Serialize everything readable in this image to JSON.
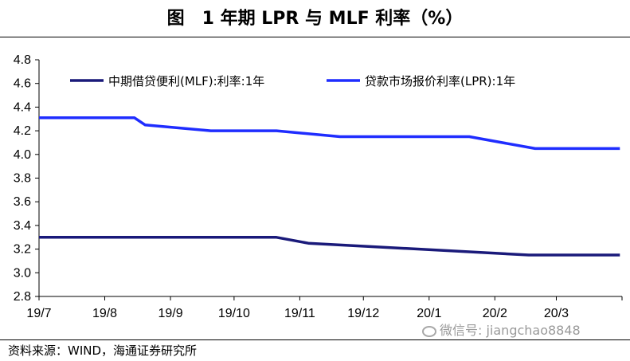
{
  "title": "图　1 年期 LPR 与 MLF 利率（%）",
  "source": "资料来源：WIND，海通证券研究所",
  "watermark": "微信号: jiangchao8848",
  "colors": {
    "mlf": "#1a1a7a",
    "lpr": "#1f2dff",
    "axis": "#000000"
  },
  "chart_data": {
    "type": "line",
    "x": [
      "2019-07-01",
      "2019-08-15",
      "2019-08-20",
      "2019-09-20",
      "2019-10-21",
      "2019-11-05",
      "2019-11-20",
      "2019-12-20",
      "2020-01-20",
      "2020-02-17",
      "2020-02-20",
      "2020-03-20",
      "2020-03-31"
    ],
    "x_tick_labels": [
      "19/7",
      "19/8",
      "19/9",
      "19/10",
      "19/11",
      "19/12",
      "20/1",
      "20/2",
      "20/3"
    ],
    "y_tick_labels": [
      "2.8",
      "3.0",
      "3.2",
      "3.4",
      "3.6",
      "3.8",
      "4.0",
      "4.2",
      "4.4",
      "4.6",
      "4.8"
    ],
    "ylim": [
      2.8,
      4.8
    ],
    "grid": false,
    "legend_position": "top",
    "series": [
      {
        "name": "中期借贷便利(MLF):利率:1年",
        "color": "#1a1a7a",
        "points": [
          [
            "2019-07-01",
            3.3
          ],
          [
            "2019-10-21",
            3.3
          ],
          [
            "2019-11-05",
            3.25
          ],
          [
            "2020-02-17",
            3.15
          ],
          [
            "2020-03-31",
            3.15
          ]
        ]
      },
      {
        "name": "贷款市场报价利率(LPR):1年",
        "color": "#1f2dff",
        "points": [
          [
            "2019-07-01",
            4.31
          ],
          [
            "2019-08-15",
            4.31
          ],
          [
            "2019-08-20",
            4.25
          ],
          [
            "2019-09-20",
            4.2
          ],
          [
            "2019-10-21",
            4.2
          ],
          [
            "2019-11-20",
            4.15
          ],
          [
            "2019-12-20",
            4.15
          ],
          [
            "2020-01-20",
            4.15
          ],
          [
            "2020-02-20",
            4.05
          ],
          [
            "2020-03-20",
            4.05
          ],
          [
            "2020-03-31",
            4.05
          ]
        ]
      }
    ]
  }
}
